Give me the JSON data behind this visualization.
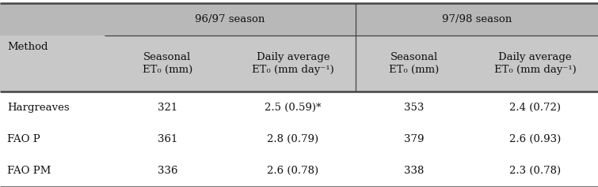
{
  "season1_label": "96/97 season",
  "season2_label": "97/98 season",
  "col0_header": "Method",
  "subheaders": [
    "Seasonal\nET₀ (mm)",
    "Daily average\nET₀ (mm day⁻¹)",
    "Seasonal\nET₀ (mm)",
    "Daily average\nET₀ (mm day⁻¹)"
  ],
  "rows": [
    [
      "Hargreaves",
      "321",
      "2.5 (0.59)*",
      "353",
      "2.4 (0.72)"
    ],
    [
      "FAO P",
      "361",
      "2.8 (0.79)",
      "379",
      "2.6 (0.93)"
    ],
    [
      "FAO PM",
      "336",
      "2.6 (0.78)",
      "338",
      "2.3 (0.78)"
    ]
  ],
  "header_bg": "#b8b8b8",
  "subheader_bg": "#c8c8c8",
  "data_bg": "#ffffff",
  "text_color": "#111111",
  "line_color": "#444444",
  "font_size": 9.5,
  "figwidth": 7.55,
  "figheight": 2.37,
  "dpi": 100
}
